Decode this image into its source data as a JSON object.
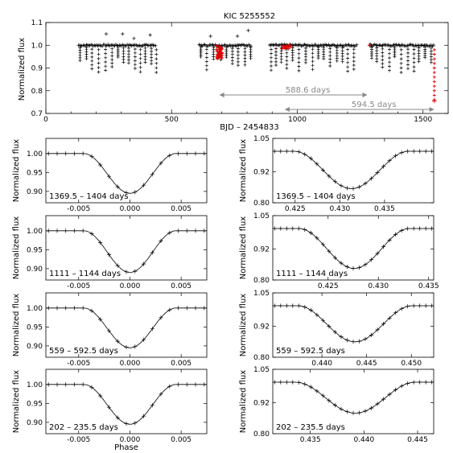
{
  "chart_data": [
    {
      "type": "scatter",
      "title": "KIC 5255552",
      "xlabel": "BJD – 2454833",
      "ylabel": "Normalized flux",
      "xlim": [
        0,
        1600
      ],
      "ylim": [
        0.7,
        1.1
      ],
      "xticks": [
        "0",
        "500",
        "1000",
        "1500"
      ],
      "yticks": [
        "0.7",
        "0.8",
        "0.9",
        "1.0",
        "1.1"
      ],
      "data_segments": [
        [
          130,
          440
        ],
        [
          610,
          690
        ],
        [
          690,
          820
        ],
        [
          890,
          1240
        ],
        [
          1290,
          1545
        ]
      ],
      "highlighted_ranges": [
        [
          680,
          700
        ],
        [
          940,
          975
        ],
        [
          1283,
          1293
        ],
        [
          1535,
          1555
        ]
      ],
      "annotations": [
        {
          "label": "588.6 days",
          "from": 690,
          "to": 1278.6
        },
        {
          "label": "594.5 days",
          "from": 950,
          "to": 1544.5
        }
      ]
    },
    {
      "type": "line",
      "panel": "left-1",
      "label": "1369.5 – 1404 days",
      "ylabel": "Normalized flux",
      "xlim": [
        -0.0082,
        0.0075
      ],
      "ylim": [
        0.87,
        1.04
      ],
      "xticks": [
        "-0.005",
        "0.000",
        "0.005"
      ],
      "yticks": [
        "1.00",
        "0.95",
        "0.90"
      ],
      "center": 0.0,
      "half_width": 0.0045,
      "depth": 0.105
    },
    {
      "type": "line",
      "panel": "right-1",
      "label": "1369.5 – 1404 days",
      "ylabel": "Normalized flux",
      "xlim": [
        0.4225,
        0.4405
      ],
      "ylim": [
        0.8,
        1.05
      ],
      "xticks": [
        "0.425",
        "0.430",
        "0.435"
      ],
      "yticks": [
        "1.05",
        "0.92",
        "0.80"
      ],
      "center": 0.4313,
      "half_width": 0.0064,
      "depth": 0.145
    },
    {
      "type": "line",
      "panel": "left-2",
      "label": "1111 – 1144 days",
      "ylabel": "Normalized flux",
      "xlim": [
        -0.0082,
        0.0075
      ],
      "ylim": [
        0.87,
        1.04
      ],
      "xticks": [
        "-0.005",
        "0.000",
        "0.005"
      ],
      "yticks": [
        "1.00",
        "0.95",
        "0.90"
      ],
      "center": 0.0,
      "half_width": 0.0045,
      "depth": 0.11
    },
    {
      "type": "line",
      "panel": "right-2",
      "label": "1111 – 1144 days",
      "ylabel": "Normalized flux",
      "xlim": [
        0.4195,
        0.4355
      ],
      "ylim": [
        0.8,
        1.05
      ],
      "xticks": [
        "0.425",
        "0.430",
        "0.435"
      ],
      "yticks": [
        "1.05",
        "0.92",
        "0.80"
      ],
      "center": 0.4276,
      "half_width": 0.0055,
      "depth": 0.155
    },
    {
      "type": "line",
      "panel": "left-3",
      "label": "559 – 592.5 days",
      "ylabel": "Normalized flux",
      "xlim": [
        -0.0082,
        0.0075
      ],
      "ylim": [
        0.87,
        1.04
      ],
      "xticks": [
        "-0.005",
        "0.000",
        "0.005"
      ],
      "yticks": [
        "1.00",
        "0.95",
        "0.90"
      ],
      "center": 0.0,
      "half_width": 0.0045,
      "depth": 0.105
    },
    {
      "type": "line",
      "panel": "right-3",
      "label": "559 – 592.5 days",
      "ylabel": "Normalized flux",
      "xlim": [
        0.4345,
        0.4525
      ],
      "ylim": [
        0.8,
        1.05
      ],
      "xticks": [
        "0.440",
        "0.445",
        "0.450"
      ],
      "yticks": [
        "1.05",
        "0.92",
        "0.80"
      ],
      "center": 0.4437,
      "half_width": 0.0064,
      "depth": 0.14
    },
    {
      "type": "line",
      "panel": "left-4",
      "label": "202 – 235.5 days",
      "ylabel": "Normalized flux",
      "xlim": [
        -0.0082,
        0.0075
      ],
      "ylim": [
        0.87,
        1.04
      ],
      "xticks": [
        "-0.005",
        "0.000",
        "0.005"
      ],
      "yticks": [
        "1.00",
        "0.95",
        "0.90"
      ],
      "xlabel": "Phase",
      "center": 0.0,
      "half_width": 0.0045,
      "depth": 0.105
    },
    {
      "type": "line",
      "panel": "right-4",
      "label": "202 – 235.5 days",
      "ylabel": "Normalized flux",
      "xlim": [
        0.4315,
        0.4465
      ],
      "ylim": [
        0.8,
        1.05
      ],
      "xticks": [
        "0.435",
        "0.440",
        "0.445"
      ],
      "yticks": [
        "1.05",
        "0.92",
        "0.80"
      ],
      "center": 0.4392,
      "half_width": 0.0056,
      "depth": 0.12
    }
  ]
}
